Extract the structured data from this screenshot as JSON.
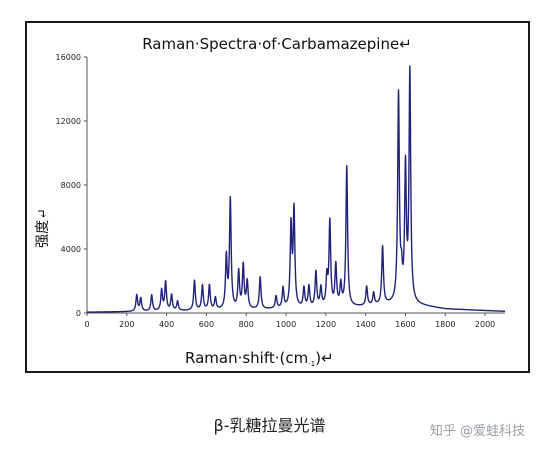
{
  "chart_data": {
    "type": "line",
    "title": "Raman·Spectra·of·Carbamazepine↵",
    "xlabel": "Raman·shift·(cm",
    "xlabel_sup": "-1",
    "xlabel_tail": ")↵",
    "ylabel": "强度↵",
    "xlim": [
      0,
      2100
    ],
    "ylim": [
      0,
      16000
    ],
    "x_ticks": [
      0,
      200,
      400,
      600,
      800,
      1000,
      1200,
      1400,
      1600,
      1800,
      2000
    ],
    "y_ticks": [
      0,
      4000,
      8000,
      12000,
      16000
    ],
    "grid": false,
    "series": [
      {
        "color": "#1f237a",
        "baseline": [
          [
            0,
            50
          ],
          [
            200,
            80
          ],
          [
            600,
            150
          ],
          [
            1000,
            250
          ],
          [
            1400,
            400
          ],
          [
            1550,
            550
          ],
          [
            1650,
            500
          ],
          [
            1800,
            250
          ],
          [
            2100,
            100
          ]
        ],
        "peaks": [
          {
            "x": 250,
            "y": 1100
          },
          {
            "x": 270,
            "y": 900
          },
          {
            "x": 325,
            "y": 1100
          },
          {
            "x": 375,
            "y": 1400
          },
          {
            "x": 395,
            "y": 1900
          },
          {
            "x": 425,
            "y": 1100
          },
          {
            "x": 455,
            "y": 700
          },
          {
            "x": 540,
            "y": 2000
          },
          {
            "x": 580,
            "y": 1700
          },
          {
            "x": 615,
            "y": 1700
          },
          {
            "x": 645,
            "y": 900
          },
          {
            "x": 700,
            "y": 3400
          },
          {
            "x": 720,
            "y": 7000
          },
          {
            "x": 762,
            "y": 2500
          },
          {
            "x": 785,
            "y": 2900
          },
          {
            "x": 805,
            "y": 1900
          },
          {
            "x": 870,
            "y": 2200
          },
          {
            "x": 950,
            "y": 1000
          },
          {
            "x": 985,
            "y": 1500
          },
          {
            "x": 1025,
            "y": 5300
          },
          {
            "x": 1040,
            "y": 6300
          },
          {
            "x": 1090,
            "y": 1500
          },
          {
            "x": 1115,
            "y": 1600
          },
          {
            "x": 1150,
            "y": 2500
          },
          {
            "x": 1175,
            "y": 1500
          },
          {
            "x": 1205,
            "y": 2100
          },
          {
            "x": 1220,
            "y": 5600
          },
          {
            "x": 1250,
            "y": 2900
          },
          {
            "x": 1275,
            "y": 1700
          },
          {
            "x": 1305,
            "y": 9100
          },
          {
            "x": 1405,
            "y": 1600
          },
          {
            "x": 1440,
            "y": 1200
          },
          {
            "x": 1485,
            "y": 4100
          },
          {
            "x": 1565,
            "y": 13500
          },
          {
            "x": 1580,
            "y": 2000
          },
          {
            "x": 1600,
            "y": 8800
          },
          {
            "x": 1622,
            "y": 14900
          }
        ]
      }
    ]
  },
  "caption": "β-乳糖拉曼光谱",
  "watermark": "知乎 @爱蛙科技"
}
